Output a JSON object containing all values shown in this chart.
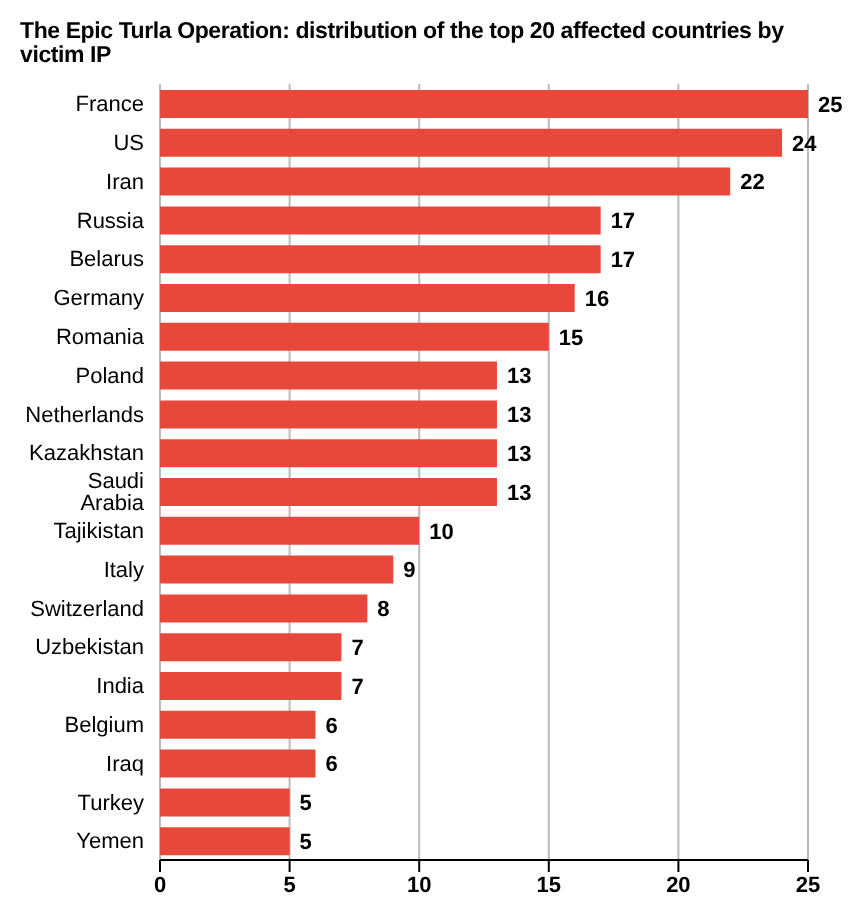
{
  "chart_data": {
    "type": "bar",
    "orientation": "horizontal",
    "title": "The Epic Turla Operation: distribution of the top 20 affected countries by victim IP",
    "categories": [
      "France",
      "US",
      "Iran",
      "Russia",
      "Belarus",
      "Germany",
      "Romania",
      "Poland",
      "Netherlands",
      "Kazakhstan",
      "Saudi Arabia",
      "Tajikistan",
      "Italy",
      "Switzerland",
      "Uzbekistan",
      "India",
      "Belgium",
      "Iraq",
      "Turkey",
      "Yemen"
    ],
    "values": [
      25,
      24,
      22,
      17,
      17,
      16,
      15,
      13,
      13,
      13,
      13,
      10,
      9,
      8,
      7,
      7,
      6,
      6,
      5,
      5
    ],
    "color": "#e8483c",
    "xlim": [
      0,
      25
    ],
    "xticks": [
      0,
      5,
      10,
      15,
      20,
      25
    ],
    "grid": "x",
    "data_labels": true
  }
}
